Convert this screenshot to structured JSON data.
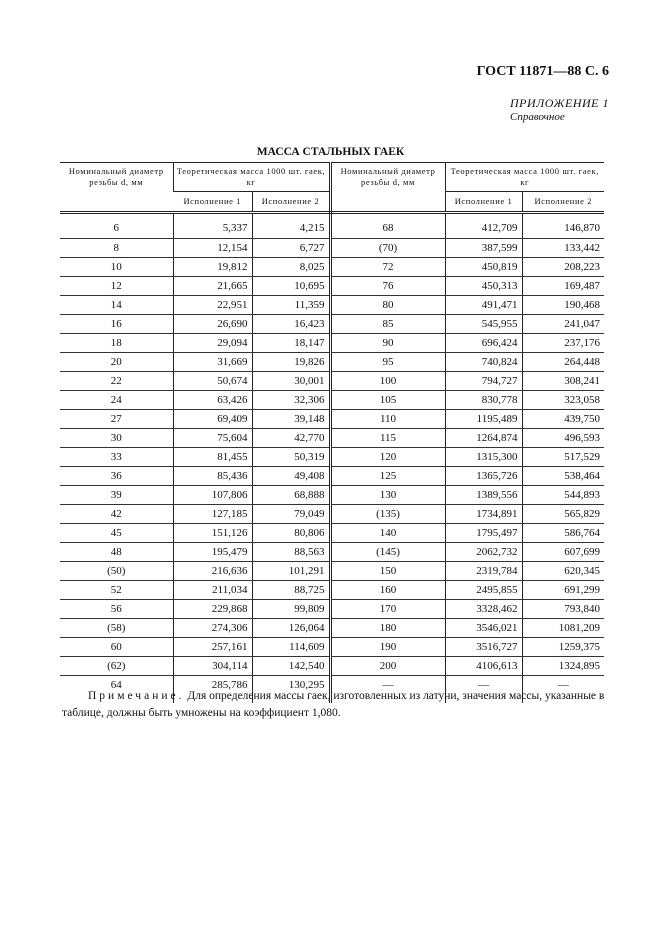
{
  "header": {
    "doc_id": "ГОСТ 11871—88 С. 6",
    "appendix": "ПРИЛОЖЕНИЕ 1",
    "appendix_type": "Справочное"
  },
  "table": {
    "title": "МАССА СТАЛЬНЫХ ГАЕК",
    "headers": {
      "diameter": "Номинальный диаметр резьбы d, мм",
      "mass": "Теоретическая масса 1000 шт. гаек, кг",
      "version1": "Исполнение 1",
      "version2": "Исполнение 2"
    },
    "rows": [
      [
        "6",
        "5,337",
        "4,215",
        "68",
        "412,709",
        "146,870"
      ],
      [
        "8",
        "12,154",
        "6,727",
        "(70)",
        "387,599",
        "133,442"
      ],
      [
        "10",
        "19,812",
        "8,025",
        "72",
        "450,819",
        "208,223"
      ],
      [
        "12",
        "21,665",
        "10,695",
        "76",
        "450,313",
        "169,487"
      ],
      [
        "14",
        "22,951",
        "11,359",
        "80",
        "491,471",
        "190,468"
      ],
      [
        "16",
        "26,690",
        "16,423",
        "85",
        "545,955",
        "241,047"
      ],
      [
        "18",
        "29,094",
        "18,147",
        "90",
        "696,424",
        "237,176"
      ],
      [
        "20",
        "31,669",
        "19,826",
        "95",
        "740,824",
        "264,448"
      ],
      [
        "22",
        "50,674",
        "30,001",
        "100",
        "794,727",
        "308,241"
      ],
      [
        "24",
        "63,426",
        "32,306",
        "105",
        "830,778",
        "323,058"
      ],
      [
        "27",
        "69,409",
        "39,148",
        "110",
        "1195,489",
        "439,750"
      ],
      [
        "30",
        "75,604",
        "42,770",
        "115",
        "1264,874",
        "496,593"
      ],
      [
        "33",
        "81,455",
        "50,319",
        "120",
        "1315,300",
        "517,529"
      ],
      [
        "36",
        "85,436",
        "49,408",
        "125",
        "1365,726",
        "538,464"
      ],
      [
        "39",
        "107,806",
        "68,888",
        "130",
        "1389,556",
        "544,893"
      ],
      [
        "42",
        "127,185",
        "79,049",
        "(135)",
        "1734,891",
        "565,829"
      ],
      [
        "45",
        "151,126",
        "80,806",
        "140",
        "1795,497",
        "586,764"
      ],
      [
        "48",
        "195,479",
        "88,563",
        "(145)",
        "2062,732",
        "607,699"
      ],
      [
        "(50)",
        "216,636",
        "101,291",
        "150",
        "2319,784",
        "620,345"
      ],
      [
        "52",
        "211,034",
        "88,725",
        "160",
        "2495,855",
        "691,299"
      ],
      [
        "56",
        "229,868",
        "99,809",
        "170",
        "3328,462",
        "793,840"
      ],
      [
        "(58)",
        "274,306",
        "126,064",
        "180",
        "3546,021",
        "1081,209"
      ],
      [
        "60",
        "257,161",
        "114,609",
        "190",
        "3516,727",
        "1259,375"
      ],
      [
        "(62)",
        "304,114",
        "142,540",
        "200",
        "4106,613",
        "1324,895"
      ],
      [
        "64",
        "285,786",
        "130,295",
        "—",
        "—",
        "—"
      ]
    ]
  },
  "note": {
    "label": "Примечание.",
    "text": " Для определения массы гаек, изготовленных из латуни, значения массы, указанные в таблице, должны быть умножены на коэффициент 1,080."
  }
}
